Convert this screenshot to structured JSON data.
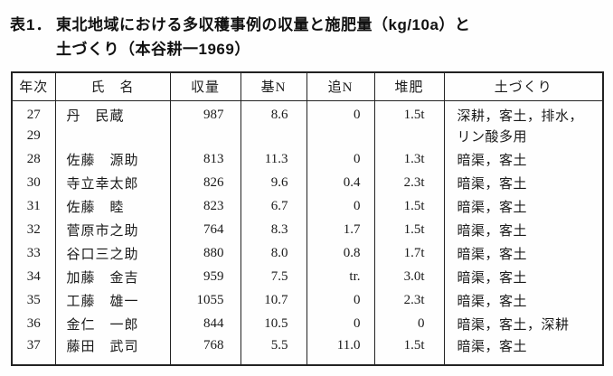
{
  "title": {
    "label": "表1．",
    "line1": "東北地域における多収穫事例の収量と施肥量（kg/10a）と",
    "line2": "土づくり（本谷耕一1969）"
  },
  "table": {
    "headers": [
      "年次",
      "氏　名",
      "収量",
      "基N",
      "追N",
      "堆肥",
      "土づくり"
    ],
    "rows": [
      [
        "27",
        "丹　民蔵",
        "987",
        "8.6",
        "0",
        "1.5t",
        "深耕，客土，排水，"
      ],
      [
        "29",
        "",
        "",
        "",
        "",
        "",
        "リン酸多用"
      ],
      [
        "28",
        "佐藤　源助",
        "813",
        "11.3",
        "0",
        "1.3t",
        "暗渠，客土"
      ],
      [
        "30",
        "寺立幸太郎",
        "826",
        "9.6",
        "0.4",
        "2.3t",
        "暗渠，客土"
      ],
      [
        "31",
        "佐藤　睦",
        "823",
        "6.7",
        "0",
        "1.5t",
        "暗渠，客土"
      ],
      [
        "32",
        "菅原市之助",
        "764",
        "8.3",
        "1.7",
        "1.5t",
        "暗渠，客土"
      ],
      [
        "33",
        "谷口三之助",
        "880",
        "8.0",
        "0.8",
        "1.7t",
        "暗渠，客土"
      ],
      [
        "34",
        "加藤　金吉",
        "959",
        "7.5",
        "tr.",
        "3.0t",
        "暗渠，客土"
      ],
      [
        "35",
        "工藤　雄一",
        "1055",
        "10.7",
        "0",
        "2.3t",
        "暗渠，客土"
      ],
      [
        "36",
        "金仁　一郎",
        "844",
        "10.5",
        "0",
        "0",
        "暗渠，客土，深耕"
      ],
      [
        "37",
        "藤田　武司",
        "768",
        "5.5",
        "11.0",
        "1.5t",
        "暗渠，客土"
      ]
    ]
  }
}
